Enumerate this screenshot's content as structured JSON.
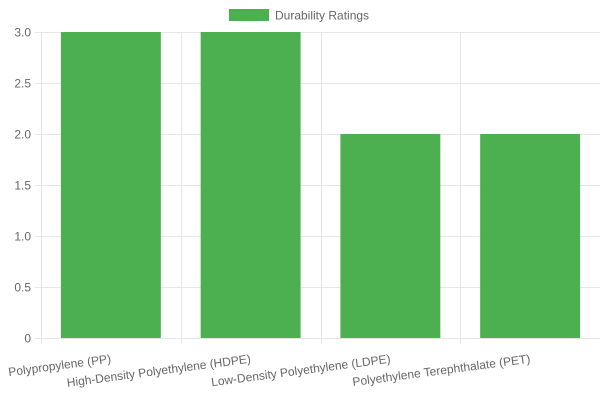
{
  "colors": {
    "bar_fill": "#4CAF50",
    "grid": "#e6e6e6",
    "axis_text": "#666666"
  },
  "chart_data": {
    "type": "bar",
    "categories": [
      "Polypropylene (PP)",
      "High-Density Polyethylene (HDPE)",
      "Low-Density Polyethylene (LDPE)",
      "Polyethylene Terephthalate (PET)"
    ],
    "series": [
      {
        "name": "Durability Ratings",
        "values": [
          3,
          3,
          2,
          2
        ]
      }
    ],
    "ylim": [
      0,
      3
    ],
    "yticks": [
      "0",
      "0.5",
      "1.0",
      "1.5",
      "2.0",
      "2.5",
      "3.0"
    ],
    "grid": true,
    "legend_position": "top-center"
  }
}
